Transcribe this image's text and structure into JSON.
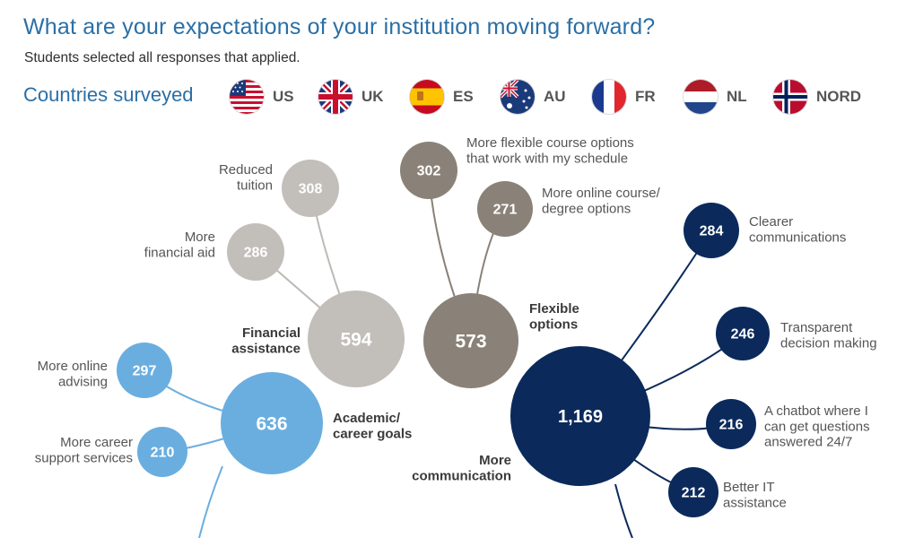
{
  "header": {
    "title": "What are your expectations of your institution moving forward?",
    "subtitle": "Students selected all responses that applied.",
    "countries_label": "Countries surveyed"
  },
  "countries": [
    {
      "code": "US",
      "flag": "us-flag"
    },
    {
      "code": "UK",
      "flag": "uk-flag"
    },
    {
      "code": "ES",
      "flag": "spain-flag"
    },
    {
      "code": "AU",
      "flag": "australia-flag"
    },
    {
      "code": "FR",
      "flag": "france-flag"
    },
    {
      "code": "NL",
      "flag": "netherlands-flag"
    },
    {
      "code": "NORD",
      "flag": "nordic-flag"
    }
  ],
  "colors": {
    "financial": "#c2bfbb",
    "flexible": "#8a8278",
    "academic": "#6aaee0",
    "communication": "#0b2a5b",
    "link_financial": "#bdb9b4",
    "link_flexible": "#8a8278",
    "link_academic": "#6aaee0",
    "link_communication": "#0b2a5b"
  },
  "chart_data": {
    "type": "bubble-tree",
    "title": "What are your expectations of your institution moving forward?",
    "subtitle": "Students selected all responses that applied.",
    "categories": [
      {
        "id": "financial",
        "label": [
          "Financial",
          "assistance"
        ],
        "value": 594,
        "value_label": "594",
        "children": [
          {
            "id": "reduced-tuition",
            "label": [
              "Reduced",
              "tuition"
            ],
            "value": 308,
            "value_label": "308"
          },
          {
            "id": "more-financial-aid",
            "label": [
              "More",
              "financial aid"
            ],
            "value": 286,
            "value_label": "286"
          }
        ]
      },
      {
        "id": "flexible",
        "label": [
          "Flexible",
          "options"
        ],
        "value": 573,
        "value_label": "573",
        "children": [
          {
            "id": "flexible-course-options",
            "label": [
              "More flexible course options",
              "that work with my schedule"
            ],
            "value": 302,
            "value_label": "302"
          },
          {
            "id": "online-course-options",
            "label": [
              "More online course/",
              "degree options"
            ],
            "value": 271,
            "value_label": "271"
          }
        ]
      },
      {
        "id": "academic",
        "label": [
          "Academic/",
          "career goals"
        ],
        "value": 636,
        "value_label": "636",
        "children": [
          {
            "id": "online-advising",
            "label": [
              "More online",
              "advising"
            ],
            "value": 297,
            "value_label": "297"
          },
          {
            "id": "career-support",
            "label": [
              "More career",
              "support services"
            ],
            "value": 210,
            "value_label": "210"
          }
        ]
      },
      {
        "id": "communication",
        "label": [
          "More",
          "communication"
        ],
        "value": 1169,
        "value_label": "1,169",
        "children": [
          {
            "id": "clearer-communications",
            "label": [
              "Clearer",
              "communications"
            ],
            "value": 284,
            "value_label": "284"
          },
          {
            "id": "transparent-decisions",
            "label": [
              "Transparent",
              "decision making"
            ],
            "value": 246,
            "value_label": "246"
          },
          {
            "id": "chatbot",
            "label": [
              "A chatbot where I",
              "can get questions",
              "answered 24/7"
            ],
            "value": 216,
            "value_label": "216"
          },
          {
            "id": "it-assistance",
            "label": [
              "Better IT",
              "assistance"
            ],
            "value": 212,
            "value_label": "212"
          }
        ]
      }
    ]
  }
}
